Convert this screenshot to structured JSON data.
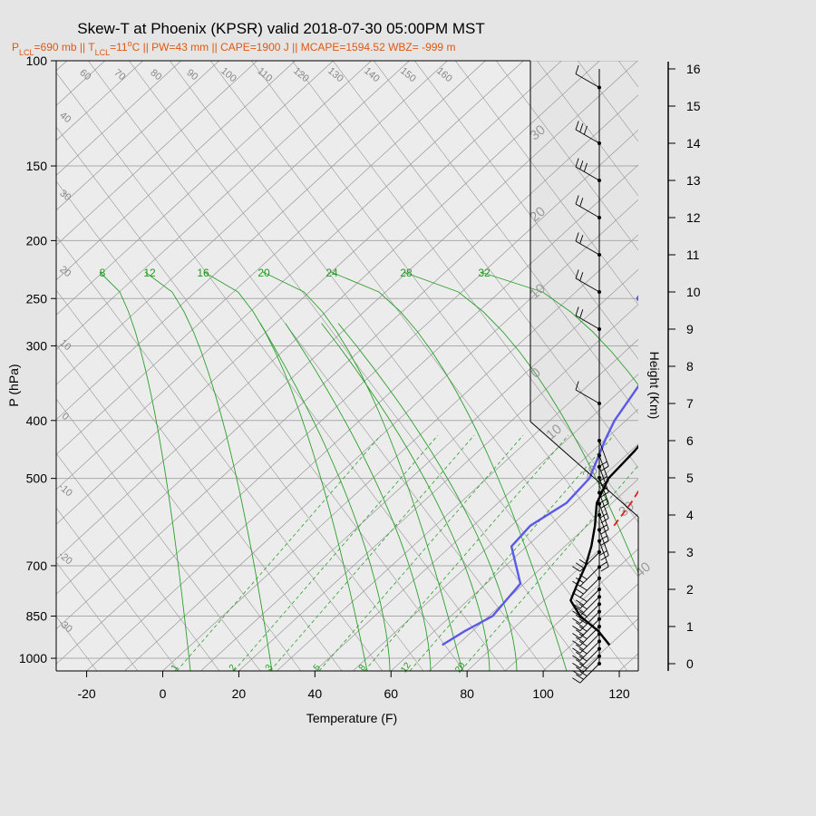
{
  "chart_data": {
    "type": "line",
    "title": "Skew-T at Phoenix (KPSR) valid 2018-07-30 05:00PM MST",
    "subtitle_parts": {
      "plcl_prefix": "P",
      "plcl_sub": "LCL",
      "plcl_value": "=690 mb || ",
      "tlcl_prefix": "T",
      "tlcl_sub": "LCL",
      "tlcl_value": "=11",
      "tlcl_sup": "o",
      "tlcl_rest": "C || PW=43 mm || CAPE=1900 J || MCAPE=1594.52 WBZ= -999 m"
    },
    "xlabel": "Temperature (F)",
    "ylabel": "P (hPa)",
    "y2label": "Height (Km)",
    "xlim": [
      -28,
      125
    ],
    "plim": [
      1050,
      100
    ],
    "x_ticks": [
      "-20",
      "0",
      "20",
      "40",
      "60",
      "80",
      "100",
      "120"
    ],
    "x_tick_values": [
      -20,
      0,
      20,
      40,
      60,
      80,
      100,
      120
    ],
    "p_ticks": [
      "100",
      "150",
      "200",
      "250",
      "300",
      "400",
      "500",
      "700",
      "850",
      "1000"
    ],
    "p_tick_values": [
      100,
      150,
      200,
      250,
      300,
      400,
      500,
      700,
      850,
      1000
    ],
    "height_ticks": [
      "0",
      "1",
      "2",
      "3",
      "4",
      "5",
      "6",
      "7",
      "8",
      "9",
      "10",
      "11",
      "12",
      "13",
      "14",
      "15",
      "16"
    ],
    "mixing_ratio_top_labels": [
      "8",
      "12",
      "16",
      "20",
      "24",
      "28",
      "32"
    ],
    "mixing_ratio_bottom_labels": [
      "1",
      "2",
      "3",
      "5",
      "8",
      "12",
      "20"
    ],
    "isotherm_labels_top": [
      "60",
      "60",
      "70",
      "80",
      "90",
      "100",
      "110",
      "120",
      "130",
      "140",
      "150",
      "160"
    ],
    "isotherm_labels_left": [
      "40",
      "30",
      "20",
      "10",
      "0",
      "-10",
      "-20",
      "-30"
    ],
    "isotherm_labels_right": [
      "30",
      "20",
      "10",
      "0",
      "10",
      "20",
      "30",
      "40"
    ],
    "series": [
      {
        "name": "Temperature",
        "color": "#000000",
        "points": [
          [
            110,
            950
          ],
          [
            103,
            900
          ],
          [
            94,
            850
          ],
          [
            87,
            800
          ],
          [
            84,
            750
          ],
          [
            81,
            700
          ],
          [
            77,
            650
          ],
          [
            72,
            600
          ],
          [
            66,
            550
          ],
          [
            62,
            500
          ],
          [
            61,
            450
          ],
          [
            59,
            400
          ],
          [
            56,
            350
          ],
          [
            50,
            300
          ],
          [
            44,
            250
          ],
          [
            36,
            200
          ],
          [
            29,
            170
          ],
          [
            25,
            150
          ],
          [
            25,
            125
          ],
          [
            35,
            100
          ]
        ]
      },
      {
        "name": "Dew point",
        "color": "#5a5ae6",
        "points": [
          [
            66,
            950
          ],
          [
            68,
            900
          ],
          [
            71,
            850
          ],
          [
            69,
            750
          ],
          [
            56,
            650
          ],
          [
            55,
            600
          ],
          [
            58,
            550
          ],
          [
            57,
            500
          ],
          [
            50,
            430
          ],
          [
            47,
            400
          ],
          [
            41,
            320
          ],
          [
            33,
            280
          ],
          [
            18,
            250
          ],
          [
            15,
            225
          ],
          [
            21,
            195
          ],
          [
            20,
            170
          ],
          [
            19,
            150
          ],
          [
            15,
            130
          ],
          [
            26,
            100
          ]
        ]
      },
      {
        "name": "Parcel",
        "color": "#e02020",
        "dashed": true,
        "points": [
          [
            77,
            600
          ],
          [
            75,
            550
          ],
          [
            72,
            500
          ],
          [
            70,
            450
          ],
          [
            67,
            400
          ],
          [
            62,
            350
          ],
          [
            54,
            300
          ],
          [
            45,
            250
          ],
          [
            40,
            220
          ],
          [
            35,
            190
          ],
          [
            30,
            160
          ]
        ]
      }
    ],
    "wind_barbs": [
      {
        "height_km": 0.0,
        "barbs": 3
      },
      {
        "height_km": 0.2,
        "barbs": 3
      },
      {
        "height_km": 0.4,
        "barbs": 3
      },
      {
        "height_km": 0.6,
        "barbs": 3
      },
      {
        "height_km": 0.8,
        "barbs": 3
      },
      {
        "height_km": 1.0,
        "barbs": 3
      },
      {
        "height_km": 1.2,
        "barbs": 3
      },
      {
        "height_km": 1.4,
        "barbs": 3
      },
      {
        "height_km": 1.6,
        "barbs": 3
      },
      {
        "height_km": 1.8,
        "barbs": 3
      },
      {
        "height_km": 2.0,
        "barbs": 3
      },
      {
        "height_km": 2.3,
        "barbs": 3
      },
      {
        "height_km": 2.6,
        "barbs": 3
      },
      {
        "height_km": 3.0,
        "barbs": 3
      },
      {
        "height_km": 3.3,
        "barbs": 2
      },
      {
        "height_km": 3.6,
        "barbs": 2
      },
      {
        "height_km": 4.0,
        "barbs": 2
      },
      {
        "height_km": 4.3,
        "barbs": 2
      },
      {
        "height_km": 4.6,
        "barbs": 2
      },
      {
        "height_km": 5.0,
        "barbs": 2
      },
      {
        "height_km": 5.3,
        "barbs": 2
      },
      {
        "height_km": 5.6,
        "barbs": 2
      },
      {
        "height_km": 6.0,
        "barbs": 2
      },
      {
        "height_km": 7.0,
        "barbs": 1
      },
      {
        "height_km": 9.0,
        "barbs": 2
      },
      {
        "height_km": 10.0,
        "barbs": 2
      },
      {
        "height_km": 11.0,
        "barbs": 2
      },
      {
        "height_km": 12.0,
        "barbs": 2
      },
      {
        "height_km": 13.0,
        "barbs": 3
      },
      {
        "height_km": 14.0,
        "barbs": 3
      },
      {
        "height_km": 15.5,
        "barbs": 1
      }
    ]
  }
}
